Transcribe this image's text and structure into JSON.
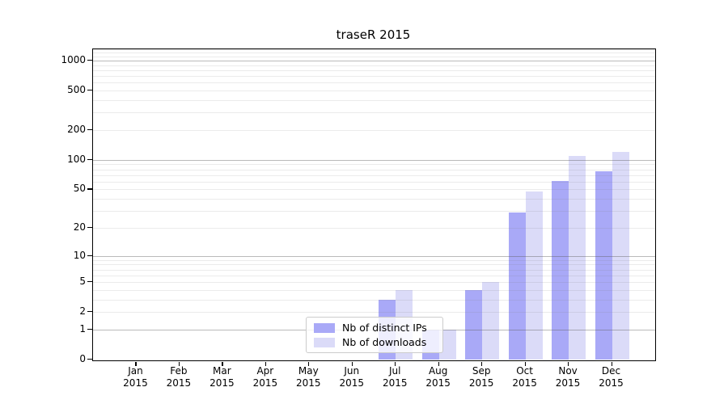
{
  "chart_data": {
    "type": "bar",
    "title": "traseR 2015",
    "categories": [
      "Jan",
      "Feb",
      "Mar",
      "Apr",
      "May",
      "Jun",
      "Jul",
      "Aug",
      "Sep",
      "Oct",
      "Nov",
      "Dec"
    ],
    "x_year_label": "2015",
    "series": [
      {
        "name": "Nb of distinct IPs",
        "color": "#a9a9f7",
        "values": [
          0,
          0,
          0,
          0,
          0,
          0,
          3,
          1,
          4,
          29,
          61,
          77
        ]
      },
      {
        "name": "Nb of downloads",
        "color": "#dbdbf8",
        "values": [
          0,
          0,
          0,
          0,
          0,
          0,
          4,
          1,
          5,
          48,
          110,
          120
        ]
      }
    ],
    "yscale": "log1p",
    "yticks": [
      0,
      1,
      2,
      5,
      10,
      20,
      50,
      100,
      200,
      500,
      1000
    ],
    "ylim": [
      0,
      1300
    ],
    "grid": {
      "major_ticks": [
        1,
        10,
        100,
        1000
      ],
      "minor_decades": [
        1,
        10,
        100
      ],
      "extra_minors": [
        1100,
        1200,
        1300
      ]
    },
    "legend": {
      "position": "lower center"
    },
    "colors": {
      "background": "#ffffff",
      "spine": "#000000",
      "major_grid": "#c3c3c3",
      "minor_grid": "#ebebeb"
    }
  }
}
